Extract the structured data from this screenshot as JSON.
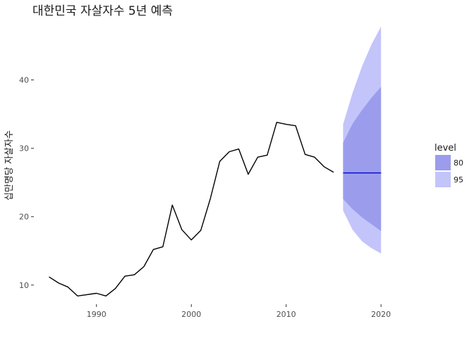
{
  "chart_data": {
    "type": "line",
    "title": "대한민국 자살자수 5년 예측",
    "xlabel": "",
    "ylabel": "십만명당 자살자수",
    "xlim": [
      1983.4,
      2024.3
    ],
    "ylim": [
      7.2,
      48.6
    ],
    "x_ticks": [
      1990,
      2000,
      2010,
      2020
    ],
    "y_ticks": [
      10,
      20,
      30,
      40
    ],
    "grid": false,
    "legend": {
      "title": "level",
      "position": "right",
      "entries": [
        "80",
        "95"
      ]
    },
    "colors": {
      "level80": "#9b9dec",
      "level95": "#c3c4fa",
      "line": "#000000",
      "forecast_line": "#0000cc"
    },
    "series": [
      {
        "type": "line",
        "x": [
          1985,
          1986,
          1987,
          1988,
          1989,
          1990,
          1991,
          1992,
          1993,
          1994,
          1995,
          1996,
          1997,
          1998,
          1999,
          2000,
          2001,
          2002,
          2003,
          2004,
          2005,
          2006,
          2007,
          2008,
          2009,
          2010,
          2011,
          2012,
          2013,
          2014,
          2015
        ],
        "values": [
          11.2,
          10.3,
          9.7,
          8.4,
          8.6,
          8.8,
          8.4,
          9.5,
          11.3,
          11.5,
          12.7,
          15.2,
          15.6,
          21.7,
          18.1,
          16.6,
          18.0,
          22.6,
          28.1,
          29.5,
          29.9,
          26.2,
          28.7,
          29.0,
          33.8,
          33.5,
          33.3,
          29.1,
          28.7,
          27.3,
          26.5
        ]
      },
      {
        "type": "forecast",
        "x": [
          2016,
          2017,
          2018,
          2019,
          2020
        ],
        "values": [
          26.4,
          26.4,
          26.4,
          26.4,
          26.4
        ],
        "lo80": [
          22.6,
          21.1,
          19.9,
          18.9,
          17.9
        ],
        "hi80": [
          30.8,
          33.6,
          35.6,
          37.4,
          39.0
        ],
        "lo95": [
          20.9,
          18.1,
          16.4,
          15.4,
          14.6
        ],
        "hi95": [
          33.5,
          38.1,
          42.0,
          45.2,
          47.8
        ]
      }
    ]
  }
}
